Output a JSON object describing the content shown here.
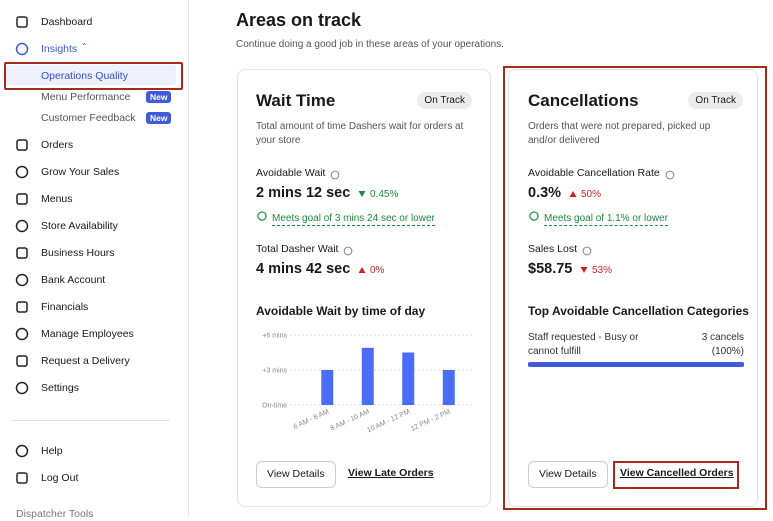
{
  "sidebar": {
    "top": [
      "Dashboard"
    ],
    "insights": {
      "label": "Insights",
      "children": [
        {
          "label": "Operations Quality"
        },
        {
          "label": "Menu Performance",
          "badge": "New"
        },
        {
          "label": "Customer Feedback",
          "badge": "New"
        }
      ]
    },
    "items": [
      "Orders",
      "Grow Your Sales",
      "Menus",
      "Store Availability",
      "Business Hours",
      "Bank Account",
      "Financials",
      "Manage Employees",
      "Request a Delivery",
      "Settings"
    ],
    "bottom": [
      "Help",
      "Log Out"
    ],
    "footer": "Dispatcher Tools"
  },
  "main": {
    "title": "Areas on track",
    "subtitle": "Continue doing a good job in these areas of your operations."
  },
  "cards": [
    {
      "title": "Wait Time",
      "status": "On Track",
      "description": "Total amount of time Dashers wait for orders at your store",
      "metrics": [
        {
          "label": "Avoidable Wait",
          "value": "2 mins 12 sec",
          "change": "0.45%",
          "trend": "down",
          "trend_color": "#1e8a3e",
          "goal": "Meets goal of 3 mins 24 sec or lower"
        },
        {
          "label": "Total Dasher Wait",
          "value": "4 mins 42 sec",
          "change": "0%",
          "trend": "up",
          "trend_color": "#c8281e"
        }
      ],
      "buttons": [
        "View Details",
        "View Late Orders"
      ]
    },
    {
      "title": "Cancellations",
      "status": "On Track",
      "description": "Orders that were not prepared, picked up and/or delivered",
      "metrics": [
        {
          "label": "Avoidable Cancellation Rate",
          "value": "0.3%",
          "change": "50%",
          "trend": "up",
          "trend_color": "#c8281e",
          "goal": "Meets goal of 1.1% or lower"
        },
        {
          "label": "Sales Lost",
          "value": "$58.75",
          "change": "53%",
          "trend": "down",
          "trend_color": "#c8281e"
        }
      ],
      "section_title": "Top Avoidable Cancellation Categories",
      "category": {
        "label": "Staff requested - Busy or cannot fulfill",
        "count": "3 cancels",
        "share": 100,
        "share_label": "(100%)",
        "color": "#3f5bd9"
      },
      "buttons": [
        "View Details",
        "View Cancelled Orders"
      ]
    }
  ],
  "chart_data": {
    "type": "bar",
    "title": "Avoidable Wait by time of day",
    "categories": [
      "6 AM - 8 AM",
      "8 AM - 10 AM",
      "10 AM - 12 PM",
      "12 PM - 2 PM"
    ],
    "values": [
      3,
      4.9,
      4.5,
      3
    ],
    "color": "#4a6cf7",
    "ylim": [
      0,
      6
    ],
    "yticks": [
      {
        "value": 0,
        "label": "On-time"
      },
      {
        "value": 3,
        "label": "+3 mins"
      },
      {
        "value": 6,
        "label": "+6 mins"
      }
    ],
    "grid": true
  }
}
